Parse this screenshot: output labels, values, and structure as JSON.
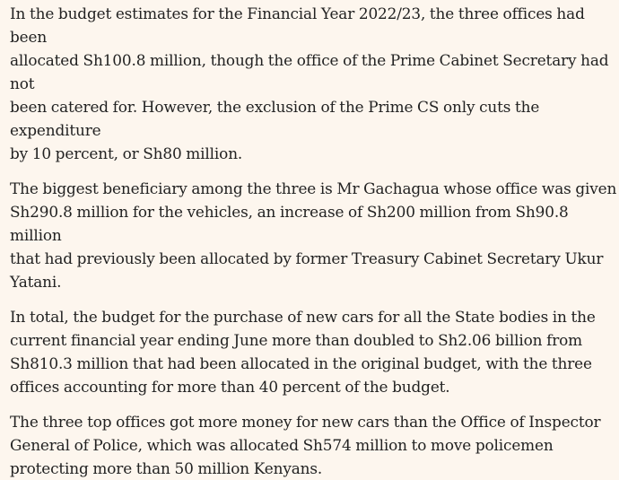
{
  "article": {
    "paragraphs": [
      {
        "lines": [
          "In the budget estimates for the Financial Year 2022/23, the three offices had been",
          "allocated Sh100.8 million, though the office of the Prime Cabinet Secretary had not",
          "been catered for. However, the exclusion of the Prime CS only cuts the expenditure",
          "by 10 percent, or Sh80 million."
        ]
      },
      {
        "lines": [
          "The biggest beneficiary among the three is Mr Gachagua whose office was given",
          "Sh290.8 million for the vehicles, an increase of Sh200 million from Sh90.8 million",
          "that had previously been allocated by former Treasury Cabinet Secretary Ukur",
          "Yatani."
        ]
      },
      {
        "lines": [
          "In total, the budget for the purchase of new cars for all the State bodies in the",
          "current financial year ending June more than doubled to Sh2.06 billion from",
          "Sh810.3 million that had been allocated in the original budget, with the three",
          "offices accounting for more than 40 percent of the budget."
        ]
      },
      {
        "lines": [
          "The three top offices got more money for new cars than the Office of Inspector",
          "General of Police, which was allocated Sh574 million to move policemen",
          "protecting more than 50 million Kenyans."
        ]
      }
    ]
  }
}
